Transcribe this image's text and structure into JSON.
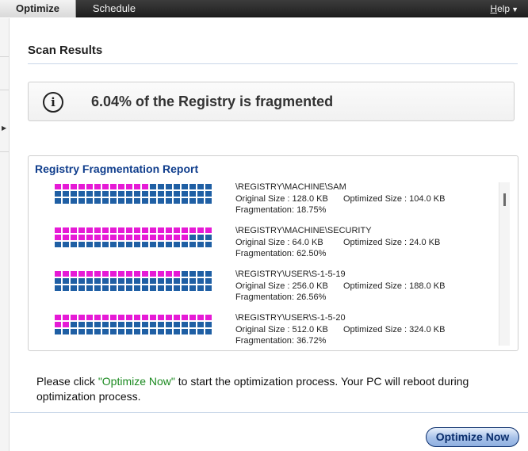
{
  "tabs": [
    {
      "label": "Optimize",
      "active": true
    },
    {
      "label": "Schedule",
      "active": false
    }
  ],
  "help": {
    "label": "Help",
    "hotkey": "H",
    "rest": "elp"
  },
  "section_title": "Scan Results",
  "banner": {
    "icon": "info-icon",
    "text": "6.04% of the Registry is fragmented"
  },
  "report": {
    "title": "Registry Fragmentation Report",
    "original_label": "Original Size",
    "optimized_label": "Optimized Size",
    "fragmentation_label": "Fragmentation",
    "entries": [
      {
        "path": "\\REGISTRY\\MACHINE\\SAM",
        "original": "128.0 KB",
        "optimized": "104.0 KB",
        "fragmentation": "18.75%",
        "magenta_blocks": 12,
        "total_blocks": 60
      },
      {
        "path": "\\REGISTRY\\MACHINE\\SECURITY",
        "original": "64.0 KB",
        "optimized": "24.0 KB",
        "fragmentation": "62.50%",
        "magenta_blocks": 37,
        "total_blocks": 60
      },
      {
        "path": "\\REGISTRY\\USER\\S-1-5-19",
        "original": "256.0 KB",
        "optimized": "188.0 KB",
        "fragmentation": "26.56%",
        "magenta_blocks": 16,
        "total_blocks": 60
      },
      {
        "path": "\\REGISTRY\\USER\\S-1-5-20",
        "original": "512.0 KB",
        "optimized": "324.0 KB",
        "fragmentation": "36.72%",
        "magenta_blocks": 22,
        "total_blocks": 60
      }
    ]
  },
  "instructions": {
    "before": "Please click ",
    "highlight": "\"Optimize Now\"",
    "after": " to start the optimization process. Your PC will reboot during optimization process."
  },
  "optimize_button": "Optimize Now",
  "colors": {
    "fragmented": "#e61ad6",
    "contiguous": "#1f5fa4",
    "accent": "#0f3d8c",
    "highlight": "#1b8a20"
  }
}
